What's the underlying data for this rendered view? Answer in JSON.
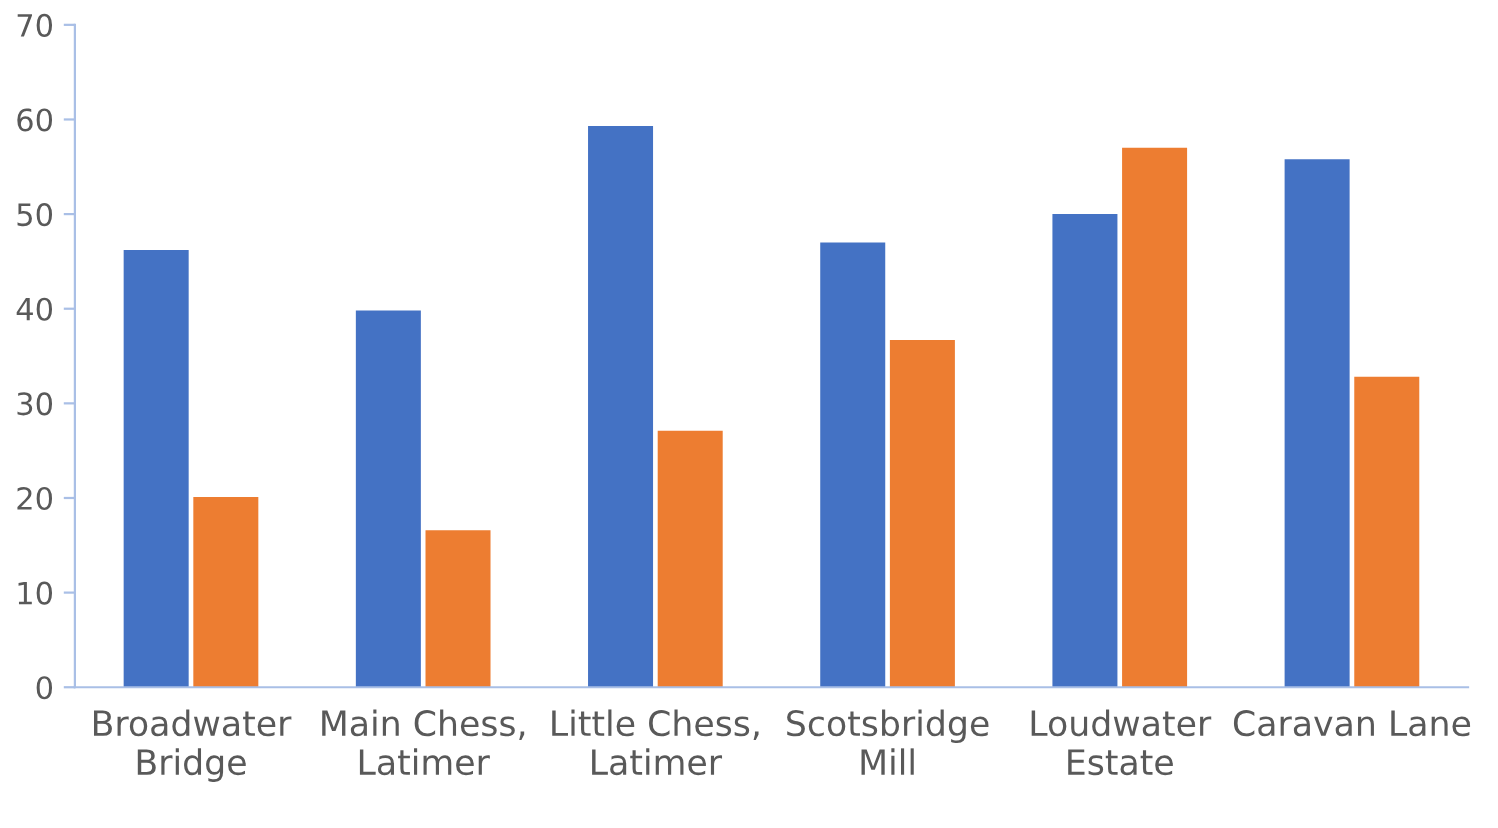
{
  "chart_data": {
    "type": "bar",
    "categories": [
      "Broadwater\nBridge",
      "Main Chess,\nLatimer",
      "Little Chess,\nLatimer",
      "Scotsbridge\nMill",
      "Loudwater\nEstate",
      "Caravan Lane"
    ],
    "series": [
      {
        "color": "#4472c4",
        "values": [
          46.2,
          39.8,
          59.3,
          47.0,
          50.0,
          55.8
        ]
      },
      {
        "color": "#ed7d31",
        "values": [
          20.1,
          16.6,
          27.1,
          36.7,
          57.0,
          32.8
        ]
      }
    ],
    "ylim": [
      0,
      70
    ],
    "yticks": [
      0,
      10,
      20,
      30,
      40,
      50,
      60,
      70
    ],
    "grid": false
  }
}
